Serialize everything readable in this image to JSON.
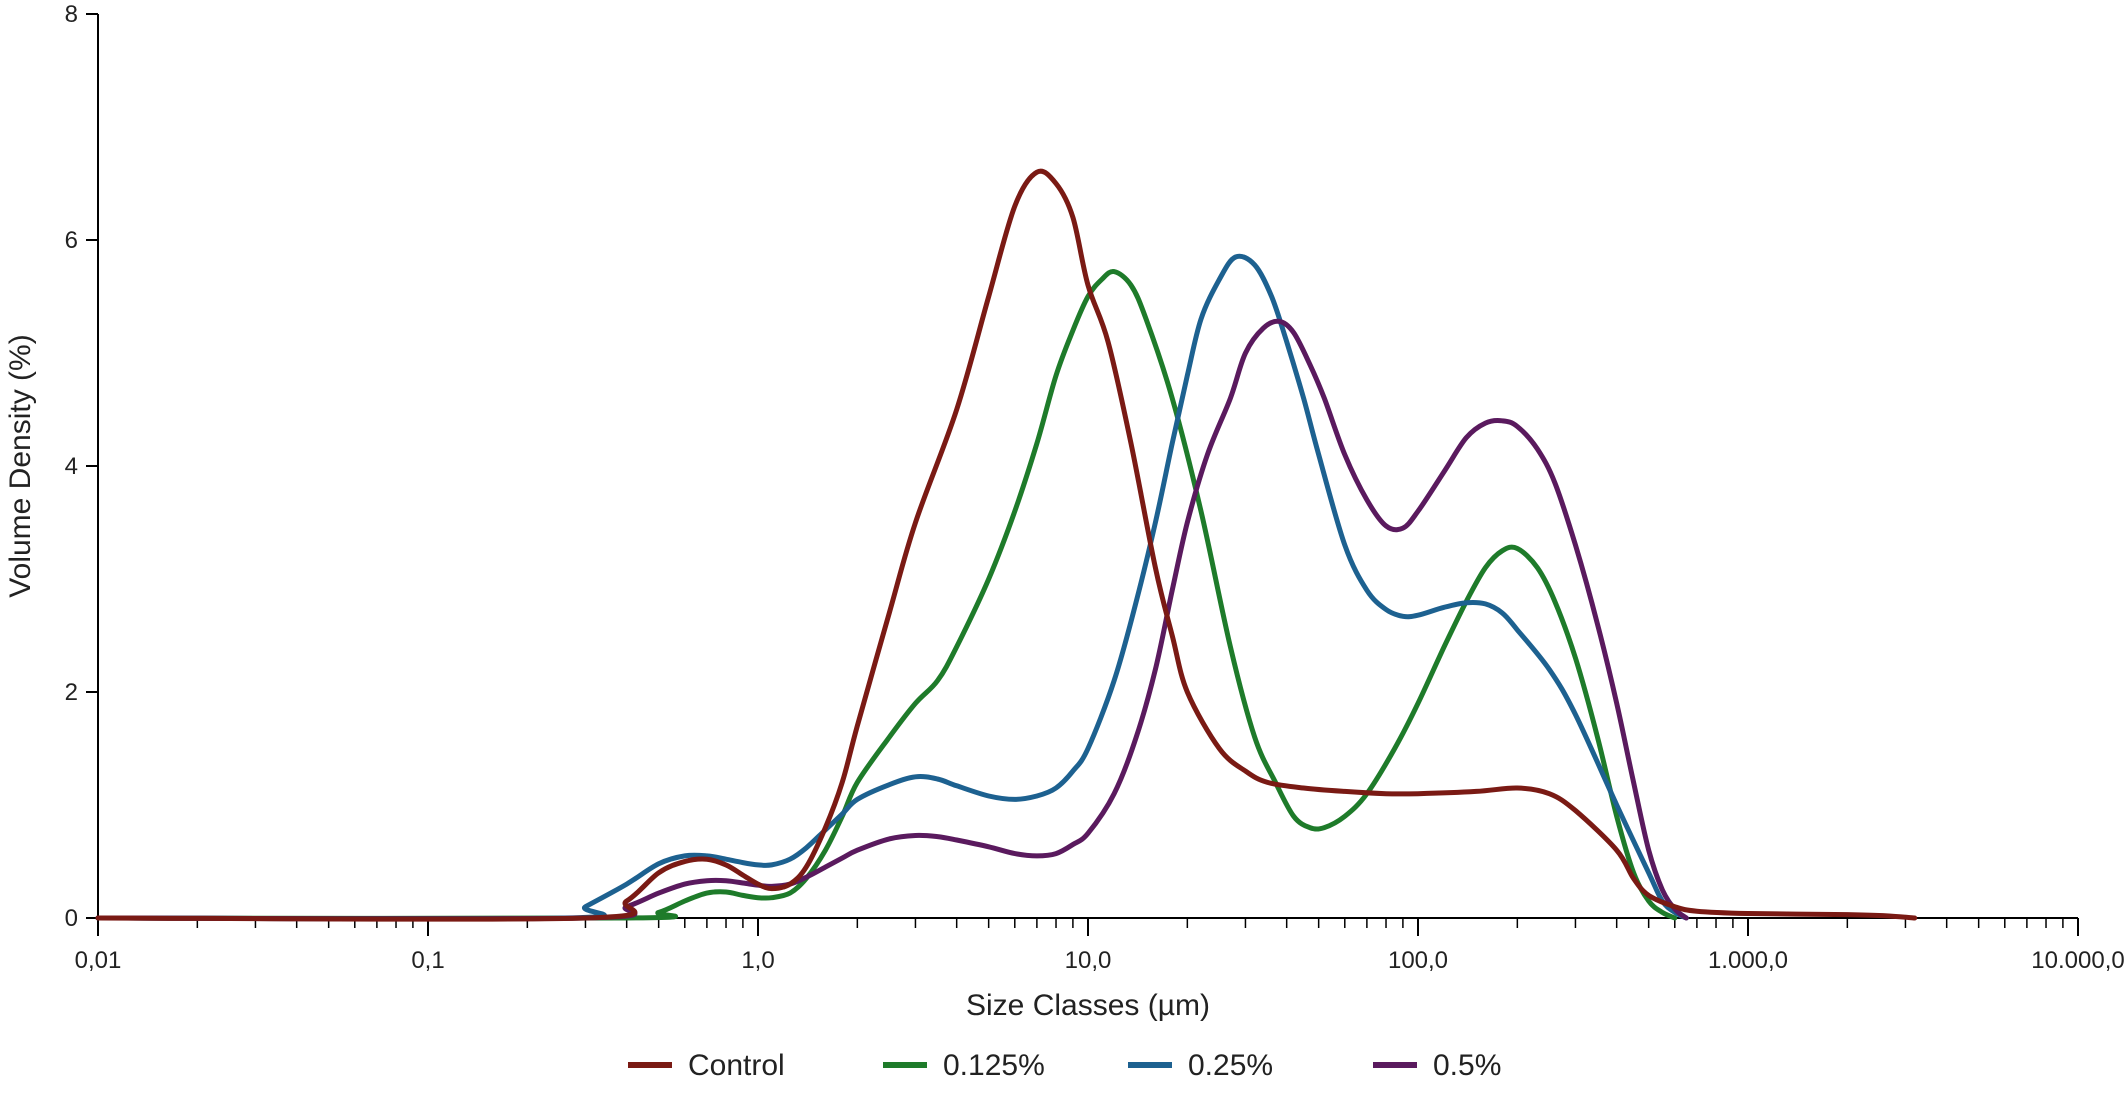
{
  "chart_data": {
    "type": "line",
    "xlabel": "Size Classes (µm)",
    "ylabel": "Volume Density (%)",
    "xscale": "log",
    "xlim": [
      0.01,
      10000
    ],
    "ylim": [
      0,
      8
    ],
    "x_ticks": [
      {
        "value": 0.01,
        "label": "0,01"
      },
      {
        "value": 0.1,
        "label": "0,1"
      },
      {
        "value": 1,
        "label": "1,0"
      },
      {
        "value": 10,
        "label": "10,0"
      },
      {
        "value": 100,
        "label": "100,0"
      },
      {
        "value": 1000,
        "label": "1.000,0"
      },
      {
        "value": 10000,
        "label": "10.000,0"
      }
    ],
    "y_ticks": [
      {
        "value": 0,
        "label": "0"
      },
      {
        "value": 2,
        "label": "2"
      },
      {
        "value": 4,
        "label": "4"
      },
      {
        "value": 6,
        "label": "6"
      },
      {
        "value": 8,
        "label": "8"
      }
    ],
    "grid": false,
    "legend_position": "bottom",
    "series": [
      {
        "name": "Control",
        "color": "#7a1a14",
        "points": [
          [
            0.01,
            0
          ],
          [
            0.3,
            0
          ],
          [
            0.4,
            0.15
          ],
          [
            0.5,
            0.4
          ],
          [
            0.6,
            0.5
          ],
          [
            0.7,
            0.52
          ],
          [
            0.8,
            0.47
          ],
          [
            0.9,
            0.38
          ],
          [
            1.0,
            0.3
          ],
          [
            1.1,
            0.26
          ],
          [
            1.25,
            0.3
          ],
          [
            1.4,
            0.45
          ],
          [
            1.6,
            0.8
          ],
          [
            1.8,
            1.2
          ],
          [
            2.0,
            1.7
          ],
          [
            2.5,
            2.7
          ],
          [
            3.0,
            3.5
          ],
          [
            4.0,
            4.5
          ],
          [
            5.0,
            5.5
          ],
          [
            6.0,
            6.3
          ],
          [
            7.0,
            6.6
          ],
          [
            8.0,
            6.5
          ],
          [
            9.0,
            6.2
          ],
          [
            10.0,
            5.6
          ],
          [
            11.5,
            5.1
          ],
          [
            13.5,
            4.2
          ],
          [
            16.0,
            3.1
          ],
          [
            18.0,
            2.5
          ],
          [
            20.0,
            2.0
          ],
          [
            25.0,
            1.5
          ],
          [
            30.0,
            1.3
          ],
          [
            35.0,
            1.2
          ],
          [
            45.0,
            1.15
          ],
          [
            60.0,
            1.12
          ],
          [
            80.0,
            1.1
          ],
          [
            100.0,
            1.1
          ],
          [
            150.0,
            1.12
          ],
          [
            200.0,
            1.15
          ],
          [
            250.0,
            1.1
          ],
          [
            300.0,
            0.95
          ],
          [
            400.0,
            0.6
          ],
          [
            450.0,
            0.35
          ],
          [
            500.0,
            0.2
          ],
          [
            600.0,
            0.1
          ],
          [
            700.0,
            0.06
          ],
          [
            1000.0,
            0.04
          ],
          [
            2000.0,
            0.03
          ],
          [
            2600.0,
            0.02
          ],
          [
            3200.0,
            0
          ]
        ]
      },
      {
        "name": "0.125%",
        "color": "#1e7b2a",
        "points": [
          [
            0.01,
            0
          ],
          [
            0.4,
            0
          ],
          [
            0.5,
            0.05
          ],
          [
            0.6,
            0.15
          ],
          [
            0.7,
            0.22
          ],
          [
            0.8,
            0.23
          ],
          [
            0.9,
            0.2
          ],
          [
            1.0,
            0.18
          ],
          [
            1.1,
            0.18
          ],
          [
            1.25,
            0.22
          ],
          [
            1.4,
            0.35
          ],
          [
            1.6,
            0.6
          ],
          [
            1.8,
            0.9
          ],
          [
            2.0,
            1.2
          ],
          [
            2.5,
            1.6
          ],
          [
            3.0,
            1.9
          ],
          [
            3.5,
            2.1
          ],
          [
            4.0,
            2.4
          ],
          [
            5.0,
            3.0
          ],
          [
            6.0,
            3.6
          ],
          [
            7.0,
            4.2
          ],
          [
            8.0,
            4.8
          ],
          [
            9.0,
            5.2
          ],
          [
            10.0,
            5.5
          ],
          [
            11.0,
            5.65
          ],
          [
            12.0,
            5.72
          ],
          [
            13.5,
            5.6
          ],
          [
            15.0,
            5.3
          ],
          [
            18.0,
            4.6
          ],
          [
            22.0,
            3.6
          ],
          [
            27.0,
            2.4
          ],
          [
            32.0,
            1.6
          ],
          [
            37.0,
            1.2
          ],
          [
            42.0,
            0.9
          ],
          [
            47.0,
            0.8
          ],
          [
            52.0,
            0.8
          ],
          [
            60.0,
            0.9
          ],
          [
            70.0,
            1.1
          ],
          [
            85.0,
            1.5
          ],
          [
            100.0,
            1.9
          ],
          [
            120.0,
            2.4
          ],
          [
            140.0,
            2.8
          ],
          [
            160.0,
            3.1
          ],
          [
            180.0,
            3.25
          ],
          [
            200.0,
            3.27
          ],
          [
            230.0,
            3.1
          ],
          [
            260.0,
            2.8
          ],
          [
            300.0,
            2.3
          ],
          [
            350.0,
            1.6
          ],
          [
            400.0,
            0.9
          ],
          [
            450.0,
            0.4
          ],
          [
            500.0,
            0.15
          ],
          [
            550.0,
            0.05
          ],
          [
            600.0,
            0
          ]
        ]
      },
      {
        "name": "0.25%",
        "color": "#1d6190",
        "points": [
          [
            0.01,
            0
          ],
          [
            0.26,
            0
          ],
          [
            0.3,
            0.1
          ],
          [
            0.4,
            0.3
          ],
          [
            0.5,
            0.48
          ],
          [
            0.6,
            0.55
          ],
          [
            0.7,
            0.55
          ],
          [
            0.8,
            0.52
          ],
          [
            0.9,
            0.49
          ],
          [
            1.0,
            0.47
          ],
          [
            1.1,
            0.47
          ],
          [
            1.25,
            0.52
          ],
          [
            1.4,
            0.62
          ],
          [
            1.6,
            0.78
          ],
          [
            1.8,
            0.92
          ],
          [
            2.0,
            1.05
          ],
          [
            2.5,
            1.18
          ],
          [
            3.0,
            1.25
          ],
          [
            3.5,
            1.23
          ],
          [
            4.0,
            1.17
          ],
          [
            5.0,
            1.08
          ],
          [
            6.0,
            1.05
          ],
          [
            7.0,
            1.08
          ],
          [
            8.0,
            1.15
          ],
          [
            9.0,
            1.3
          ],
          [
            10.0,
            1.5
          ],
          [
            12.0,
            2.1
          ],
          [
            14.0,
            2.8
          ],
          [
            16.0,
            3.5
          ],
          [
            18.0,
            4.2
          ],
          [
            20.0,
            4.8
          ],
          [
            22.0,
            5.3
          ],
          [
            25.0,
            5.65
          ],
          [
            28.0,
            5.85
          ],
          [
            32.0,
            5.78
          ],
          [
            36.0,
            5.5
          ],
          [
            40.0,
            5.1
          ],
          [
            45.0,
            4.6
          ],
          [
            50.0,
            4.1
          ],
          [
            60.0,
            3.3
          ],
          [
            70.0,
            2.9
          ],
          [
            80.0,
            2.73
          ],
          [
            90.0,
            2.67
          ],
          [
            100.0,
            2.68
          ],
          [
            120.0,
            2.75
          ],
          [
            140.0,
            2.79
          ],
          [
            160.0,
            2.78
          ],
          [
            180.0,
            2.7
          ],
          [
            200.0,
            2.55
          ],
          [
            250.0,
            2.2
          ],
          [
            300.0,
            1.8
          ],
          [
            400.0,
            1.0
          ],
          [
            500.0,
            0.4
          ],
          [
            550.0,
            0.15
          ],
          [
            600.0,
            0.05
          ],
          [
            650.0,
            0
          ]
        ]
      },
      {
        "name": "0.5%",
        "color": "#5a1a5e",
        "points": [
          [
            0.01,
            0
          ],
          [
            0.3,
            0
          ],
          [
            0.4,
            0.1
          ],
          [
            0.5,
            0.22
          ],
          [
            0.6,
            0.3
          ],
          [
            0.7,
            0.33
          ],
          [
            0.8,
            0.33
          ],
          [
            0.9,
            0.31
          ],
          [
            1.0,
            0.29
          ],
          [
            1.1,
            0.28
          ],
          [
            1.25,
            0.3
          ],
          [
            1.4,
            0.36
          ],
          [
            1.6,
            0.45
          ],
          [
            1.8,
            0.53
          ],
          [
            2.0,
            0.6
          ],
          [
            2.5,
            0.7
          ],
          [
            3.0,
            0.73
          ],
          [
            3.5,
            0.72
          ],
          [
            4.0,
            0.69
          ],
          [
            5.0,
            0.63
          ],
          [
            6.0,
            0.57
          ],
          [
            7.0,
            0.55
          ],
          [
            8.0,
            0.57
          ],
          [
            9.0,
            0.65
          ],
          [
            10.0,
            0.75
          ],
          [
            12.0,
            1.1
          ],
          [
            14.0,
            1.6
          ],
          [
            16.0,
            2.2
          ],
          [
            18.0,
            2.9
          ],
          [
            20.0,
            3.5
          ],
          [
            23.0,
            4.1
          ],
          [
            27.0,
            4.6
          ],
          [
            30.0,
            5.0
          ],
          [
            34.0,
            5.22
          ],
          [
            38.0,
            5.28
          ],
          [
            42.0,
            5.18
          ],
          [
            47.0,
            4.9
          ],
          [
            52.0,
            4.6
          ],
          [
            60.0,
            4.1
          ],
          [
            70.0,
            3.7
          ],
          [
            80.0,
            3.47
          ],
          [
            90.0,
            3.45
          ],
          [
            100.0,
            3.6
          ],
          [
            120.0,
            3.95
          ],
          [
            140.0,
            4.25
          ],
          [
            160.0,
            4.38
          ],
          [
            180.0,
            4.4
          ],
          [
            200.0,
            4.35
          ],
          [
            230.0,
            4.15
          ],
          [
            260.0,
            3.85
          ],
          [
            300.0,
            3.3
          ],
          [
            350.0,
            2.6
          ],
          [
            400.0,
            1.9
          ],
          [
            450.0,
            1.2
          ],
          [
            500.0,
            0.6
          ],
          [
            550.0,
            0.25
          ],
          [
            600.0,
            0.08
          ],
          [
            650.0,
            0
          ]
        ]
      }
    ]
  }
}
